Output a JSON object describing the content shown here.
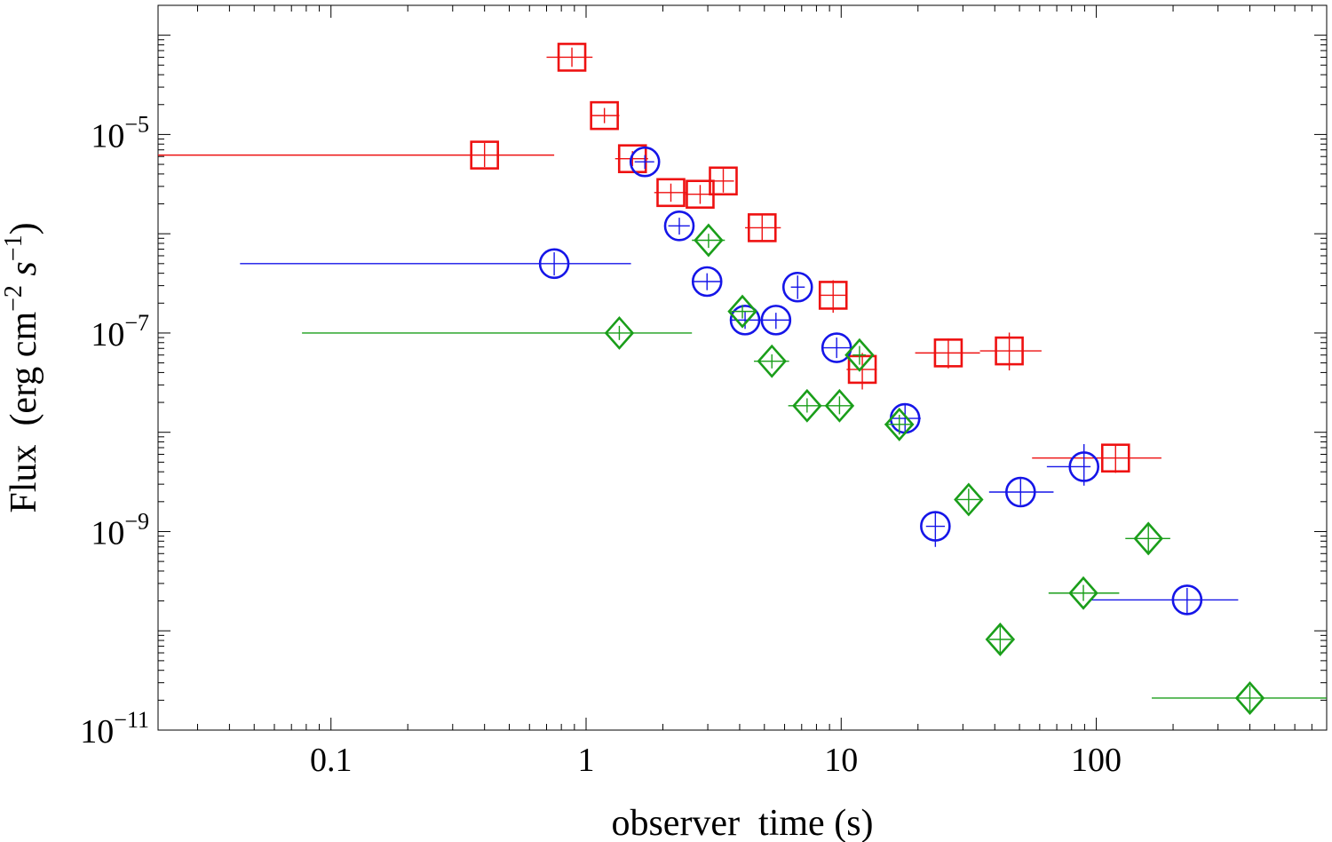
{
  "chart_data": {
    "type": "scatter",
    "title": "",
    "xlabel": "observer  time (s)",
    "ylabel": {
      "main": "Flux  (erg cm",
      "exp1": "−2",
      "mid": " s",
      "exp2": "−1",
      "end": ")"
    },
    "xscale": "log",
    "yscale": "log",
    "xlim": [
      0.021,
      800
    ],
    "ylim": [
      1e-11,
      0.0002
    ],
    "x_ticks": [
      {
        "value": 0.1,
        "label": "0.1"
      },
      {
        "value": 1,
        "label": "1"
      },
      {
        "value": 10,
        "label": "10"
      },
      {
        "value": 100,
        "label": "100"
      }
    ],
    "y_ticks": [
      {
        "value": 1e-11,
        "base": "10",
        "exp": "−11"
      },
      {
        "value": 1e-09,
        "base": "10",
        "exp": "−9"
      },
      {
        "value": 1e-07,
        "base": "10",
        "exp": "−7"
      },
      {
        "value": 1e-05,
        "base": "10",
        "exp": "−5"
      }
    ],
    "series": [
      {
        "name": "red squares",
        "color": "#ee1111",
        "marker": "square",
        "points": [
          {
            "x": 0.4,
            "y": 6.2e-06,
            "xlo": 0.021,
            "xhi": 0.75,
            "ylo": 4.7e-06,
            "yhi": 8.2e-06
          },
          {
            "x": 0.88,
            "y": 6e-05,
            "xlo": 0.7,
            "xhi": 1.06,
            "ylo": 4.8e-05,
            "yhi": 7.5e-05
          },
          {
            "x": 1.18,
            "y": 1.55e-05,
            "xlo": 1.05,
            "xhi": 1.35,
            "ylo": 1.3e-05,
            "yhi": 1.85e-05
          },
          {
            "x": 1.52,
            "y": 5.7e-06,
            "xlo": 1.3,
            "xhi": 1.75,
            "ylo": 4.8e-06,
            "yhi": 6.8e-06
          },
          {
            "x": 2.15,
            "y": 2.6e-06,
            "xlo": 1.85,
            "xhi": 2.5,
            "ylo": 2.1e-06,
            "yhi": 3.2e-06
          },
          {
            "x": 2.8,
            "y": 2.5e-06,
            "xlo": 2.45,
            "xhi": 3.2,
            "ylo": 2e-06,
            "yhi": 3.1e-06
          },
          {
            "x": 3.45,
            "y": 3.4e-06,
            "xlo": 3.15,
            "xhi": 3.8,
            "ylo": 2.6e-06,
            "yhi": 4.5e-06
          },
          {
            "x": 4.9,
            "y": 1.15e-06,
            "xlo": 4.2,
            "xhi": 5.8,
            "ylo": 8.3e-07,
            "yhi": 1.55e-06
          },
          {
            "x": 9.3,
            "y": 2.4e-07,
            "xlo": 8.3,
            "xhi": 10.5,
            "ylo": 1.6e-07,
            "yhi": 3.4e-07
          },
          {
            "x": 12.1,
            "y": 4.3e-08,
            "xlo": 10.5,
            "xhi": 13.8,
            "ylo": 2.7e-08,
            "yhi": 6.3e-08
          },
          {
            "x": 26.3,
            "y": 6.3e-08,
            "xlo": 19.5,
            "xhi": 35,
            "ylo": 4.4e-08,
            "yhi": 8.8e-08
          },
          {
            "x": 45.6,
            "y": 6.6e-08,
            "xlo": 35,
            "xhi": 61,
            "ylo": 4.2e-08,
            "yhi": 1.01e-07
          },
          {
            "x": 119,
            "y": 5.5e-09,
            "xlo": 56,
            "xhi": 180,
            "ylo": 3.9e-09,
            "yhi": 7.4e-09
          }
        ]
      },
      {
        "name": "blue circles",
        "color": "#1515e8",
        "marker": "circle",
        "points": [
          {
            "x": 0.75,
            "y": 5e-07,
            "xlo": 0.044,
            "xhi": 1.5,
            "ylo": 3.8e-07,
            "yhi": 6.5e-07
          },
          {
            "x": 1.7,
            "y": 5.3e-06,
            "xlo": 1.55,
            "xhi": 1.85,
            "ylo": 4.5e-06,
            "yhi": 6.2e-06
          },
          {
            "x": 2.32,
            "y": 1.2e-06,
            "xlo": 2.1,
            "xhi": 2.55,
            "ylo": 9.8e-07,
            "yhi": 1.45e-06
          },
          {
            "x": 2.98,
            "y": 3.3e-07,
            "xlo": 2.6,
            "xhi": 3.4,
            "ylo": 2.7e-07,
            "yhi": 4e-07
          },
          {
            "x": 4.2,
            "y": 1.35e-07,
            "xlo": 3.7,
            "xhi": 4.75,
            "ylo": 1.1e-07,
            "yhi": 1.65e-07
          },
          {
            "x": 5.55,
            "y": 1.35e-07,
            "xlo": 4.8,
            "xhi": 6.35,
            "ylo": 1.1e-07,
            "yhi": 1.6e-07
          },
          {
            "x": 6.75,
            "y": 2.9e-07,
            "xlo": 6.35,
            "xhi": 7.2,
            "ylo": 2.2e-07,
            "yhi": 3.8e-07
          },
          {
            "x": 9.6,
            "y": 7.1e-08,
            "xlo": 8.4,
            "xhi": 11,
            "ylo": 5.6e-08,
            "yhi": 9e-08
          },
          {
            "x": 17.8,
            "y": 1.38e-08,
            "xlo": 15.5,
            "xhi": 20.5,
            "ylo": 9.8e-09,
            "yhi": 1.95e-08
          },
          {
            "x": 23.4,
            "y": 1.13e-09,
            "xlo": 21.5,
            "xhi": 25.5,
            "ylo": 7e-10,
            "yhi": 1.6e-09
          },
          {
            "x": 50.5,
            "y": 2.5e-09,
            "xlo": 38,
            "xhi": 68,
            "ylo": 1.85e-09,
            "yhi": 3.4e-09
          },
          {
            "x": 89.5,
            "y": 4.5e-09,
            "xlo": 64,
            "xhi": 95,
            "ylo": 2.9e-09,
            "yhi": 7.6e-09
          },
          {
            "x": 227,
            "y": 2.05e-10,
            "xlo": 95,
            "xhi": 360,
            "ylo": 1.45e-10,
            "yhi": 2.7e-10
          }
        ]
      },
      {
        "name": "green diamonds",
        "color": "#1a9e1a",
        "marker": "diamond",
        "points": [
          {
            "x": 1.35,
            "y": 1e-07,
            "xlo": 0.077,
            "xhi": 2.6,
            "ylo": 8.5e-08,
            "yhi": 1.18e-07
          },
          {
            "x": 3.02,
            "y": 8.6e-07,
            "xlo": 2.6,
            "xhi": 3.5,
            "ylo": 7.2e-07,
            "yhi": 1e-06
          },
          {
            "x": 4.1,
            "y": 1.65e-07,
            "xlo": 3.7,
            "xhi": 4.55,
            "ylo": 1.4e-07,
            "yhi": 1.92e-07
          },
          {
            "x": 5.35,
            "y": 5.2e-08,
            "xlo": 4.55,
            "xhi": 6.25,
            "ylo": 4.4e-08,
            "yhi": 6.1e-08
          },
          {
            "x": 7.35,
            "y": 1.85e-08,
            "xlo": 6.2,
            "xhi": 8.7,
            "ylo": 1.58e-08,
            "yhi": 2.2e-08
          },
          {
            "x": 9.85,
            "y": 1.85e-08,
            "xlo": 8.7,
            "xhi": 11.2,
            "ylo": 1.52e-08,
            "yhi": 2.3e-08
          },
          {
            "x": 11.8,
            "y": 6e-08,
            "xlo": 11.1,
            "xhi": 12.5,
            "ylo": 4.8e-08,
            "yhi": 7.4e-08
          },
          {
            "x": 16.9,
            "y": 1.2e-08,
            "xlo": 14.8,
            "xhi": 19.2,
            "ylo": 9.5e-09,
            "yhi": 1.5e-08
          },
          {
            "x": 31.6,
            "y": 2.1e-09,
            "xlo": 28.5,
            "xhi": 35,
            "ylo": 1.6e-09,
            "yhi": 2.7e-09
          },
          {
            "x": 42,
            "y": 8.2e-11,
            "xlo": 38,
            "xhi": 46.5,
            "ylo": 5.8e-11,
            "yhi": 1.12e-10
          },
          {
            "x": 89,
            "y": 2.4e-10,
            "xlo": 65,
            "xhi": 123,
            "ylo": 2e-10,
            "yhi": 2.9e-10
          },
          {
            "x": 160,
            "y": 8.5e-10,
            "xlo": 130,
            "xhi": 195,
            "ylo": 6e-10,
            "yhi": 1.2e-09
          },
          {
            "x": 400,
            "y": 2.1e-11,
            "xlo": 165,
            "xhi": 800,
            "ylo": 1.55e-11,
            "yhi": 2.8e-11
          }
        ]
      }
    ]
  }
}
